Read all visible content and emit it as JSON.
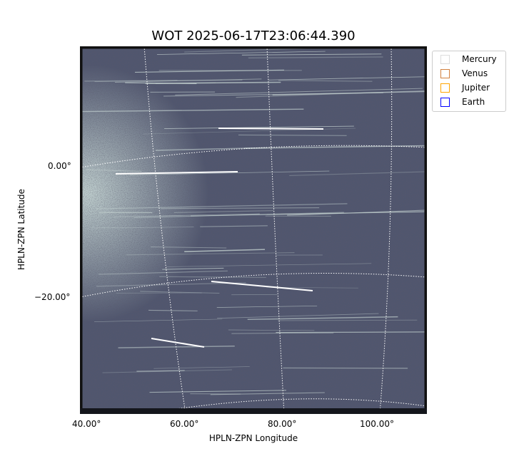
{
  "title": "WOT 2025-06-17T23:06:44.390",
  "x_axis": {
    "label": "HPLN-ZPN Longitude",
    "ticks": [
      "40.00°",
      "60.00°",
      "80.00°",
      "100.00°"
    ]
  },
  "y_axis": {
    "label": "HPLN-ZPN Latitude",
    "ticks": [
      "0.00°",
      "−20.00°"
    ]
  },
  "legend": [
    {
      "label": "Mercury",
      "color": "#dddddd"
    },
    {
      "label": "Venus",
      "color": "#d2813f"
    },
    {
      "label": "Jupiter",
      "color": "#ffa500"
    },
    {
      "label": "Earth",
      "color": "#0000ff"
    }
  ],
  "image": {
    "colormap": "bone",
    "background": "#4a5068"
  }
}
